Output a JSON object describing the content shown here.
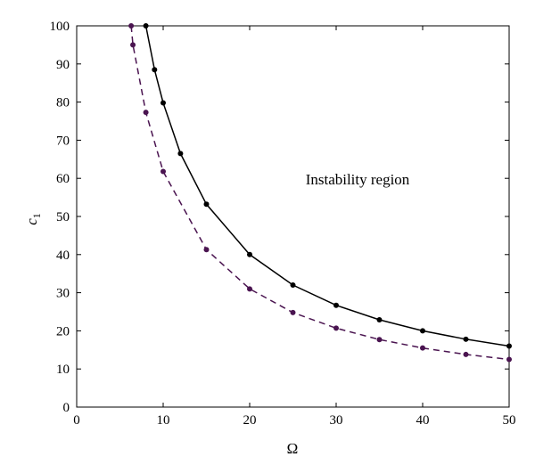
{
  "chart_data": {
    "type": "line",
    "title": "",
    "xlabel": "Ω",
    "ylabel": "c",
    "ylabel_subscript": "1",
    "xlim": [
      0,
      50
    ],
    "ylim": [
      0,
      100
    ],
    "xticks": [
      0,
      10,
      20,
      30,
      40,
      50
    ],
    "yticks": [
      0,
      10,
      20,
      30,
      40,
      50,
      60,
      70,
      80,
      90,
      100
    ],
    "grid": false,
    "annotations": [
      {
        "text": "Instability region",
        "x": 31.8,
        "y": 59
      }
    ],
    "series": [
      {
        "style": "solid",
        "color": "#000000",
        "x": [
          8.0,
          9.0,
          10.0,
          12.0,
          15.0,
          20.0,
          25.0,
          30.0,
          35.0,
          40.0,
          45.0,
          50.0
        ],
        "y": [
          100.0,
          88.5,
          79.8,
          66.5,
          53.2,
          40.0,
          32.0,
          26.7,
          22.9,
          20.0,
          17.8,
          16.0
        ]
      },
      {
        "style": "dashed",
        "color": "#4a1450",
        "x": [
          6.3,
          6.5,
          8.0,
          10.0,
          15.0,
          20.0,
          25.0,
          30.0,
          35.0,
          40.0,
          45.0,
          50.0
        ],
        "y": [
          100.0,
          95.0,
          77.3,
          61.8,
          41.3,
          31.0,
          24.8,
          20.7,
          17.7,
          15.5,
          13.8,
          12.5
        ]
      }
    ]
  }
}
